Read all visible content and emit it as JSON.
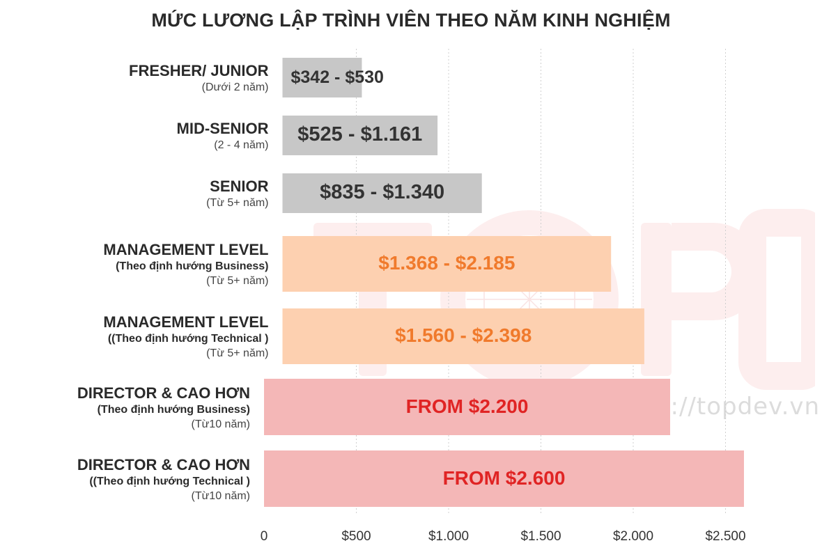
{
  "title": "MỨC LƯƠNG LẬP TRÌNH VIÊN THEO NĂM KINH NGHIỆM",
  "watermark": "https://topdev.vn",
  "colors": {
    "gray_bar": "#c7c7c7",
    "gray_text": "#333333",
    "orange_bar": "#fdd0b0",
    "orange_text": "#f07a2c",
    "red_bar": "#f4b7b7",
    "red_text": "#e02424",
    "grid": "#cfcfcf"
  },
  "chart_data": {
    "type": "bar",
    "orientation": "horizontal",
    "title": "MỨC LƯƠNG LẬP TRÌNH VIÊN THEO NĂM KINH NGHIỆM",
    "xlim": [
      0,
      2600
    ],
    "grid": true,
    "xticks": [
      0,
      500,
      1000,
      1500,
      2000,
      2500
    ],
    "xtick_labels": [
      "0",
      "$500",
      "$1.000",
      "$1.500",
      "$2.000",
      "$2.500"
    ],
    "categories": [
      {
        "name": "FRESHER/ JUNIOR",
        "qualifier": "",
        "years": "(Dưới 2 năm)",
        "start": 100,
        "end": 530,
        "label": "$342 - $530",
        "style": "gray"
      },
      {
        "name": "MID-SENIOR",
        "qualifier": "",
        "years": "(2 - 4 năm)",
        "start": 100,
        "end": 940,
        "label": "$525 - $1.161",
        "style": "gray"
      },
      {
        "name": "SENIOR",
        "qualifier": "",
        "years": "(Từ 5+ năm)",
        "start": 100,
        "end": 1180,
        "label": "$835 - $1.340",
        "style": "gray"
      },
      {
        "name": "MANAGEMENT LEVEL",
        "qualifier": "(Theo định hướng Business)",
        "years": "(Từ 5+ năm)",
        "start": 100,
        "end": 1880,
        "label": "$1.368 - $2.185",
        "style": "orange"
      },
      {
        "name": "MANAGEMENT LEVEL",
        "qualifier": "((Theo định hướng Technical )",
        "years": "(Từ 5+ năm)",
        "start": 100,
        "end": 2060,
        "label": "$1.560 - $2.398",
        "style": "orange"
      },
      {
        "name": "DIRECTOR & CAO HƠN",
        "qualifier": "(Theo định hướng Business)",
        "years": "(Từ10 năm)",
        "start": 0,
        "end": 2200,
        "label": "FROM $2.200",
        "style": "red"
      },
      {
        "name": "DIRECTOR & CAO HƠN",
        "qualifier": "((Theo định hướng Technical )",
        "years": "(Từ10 năm)",
        "start": 0,
        "end": 2600,
        "label": "FROM $2.600",
        "style": "red"
      }
    ]
  }
}
